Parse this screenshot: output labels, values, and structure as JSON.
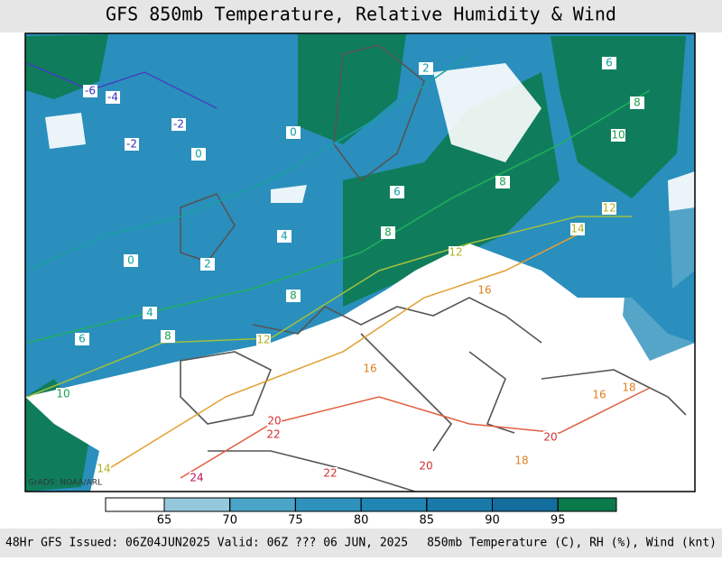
{
  "title": "GFS 850mb Temperature, Relative Humidity & Wind",
  "credit": "GrADS: NOAA/ARL",
  "footer": {
    "left": "48Hr GFS Issued: 06Z04JUN2025 Valid: 06Z ??? 06 JUN, 2025",
    "right": "850mb Temperature (C), RH (%), Wind (knt)"
  },
  "colorbar": {
    "ticks": [
      65,
      70,
      75,
      80,
      85,
      90,
      95
    ],
    "colors": [
      "#ffffff",
      "#96c8dc",
      "#4aa5c8",
      "#2f92bd",
      "#2185b3",
      "#197aa9",
      "#136e9e",
      "#0a7a4a"
    ]
  },
  "contour_labels": [
    -6,
    -4,
    -2,
    -2,
    0,
    0,
    0,
    2,
    2,
    4,
    4,
    6,
    6,
    6,
    8,
    8,
    8,
    8,
    8,
    10,
    10,
    12,
    12,
    12,
    14,
    14,
    16,
    16,
    16,
    18,
    18,
    20,
    20,
    20,
    22,
    22,
    24
  ]
}
